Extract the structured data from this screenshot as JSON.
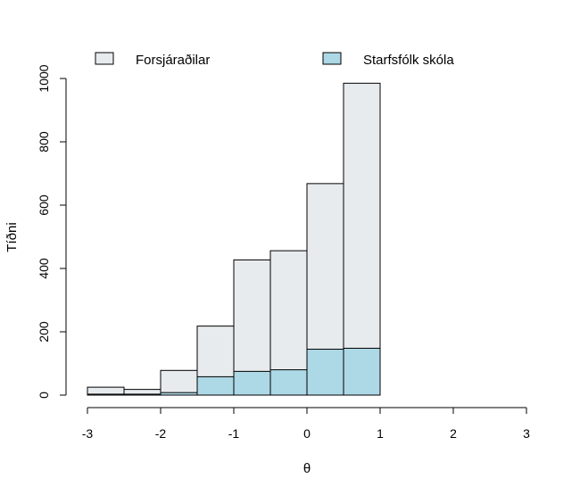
{
  "chart_data": {
    "type": "bar",
    "histogram": true,
    "xlabel": "θ",
    "ylabel": "Tíðni",
    "xlim": [
      -3,
      3
    ],
    "ylim": [
      0,
      1000
    ],
    "xticks": [
      -3,
      -2,
      -1,
      0,
      1,
      2,
      3
    ],
    "yticks": [
      0,
      200,
      400,
      600,
      800,
      1000
    ],
    "bin_edges": [
      -3,
      -2.5,
      -2,
      -1.5,
      -1,
      -0.5,
      0,
      0.5,
      1
    ],
    "series": [
      {
        "name": "Forsjáraðilar",
        "color": "#e8ebee",
        "values": [
          25,
          18,
          78,
          218,
          427,
          456,
          668,
          985
        ]
      },
      {
        "name": "Starfsfólk skóla",
        "color": "#add8e6",
        "values": [
          3,
          3,
          8,
          58,
          75,
          80,
          145,
          148
        ]
      }
    ],
    "legend_position": "top",
    "grid": false
  }
}
